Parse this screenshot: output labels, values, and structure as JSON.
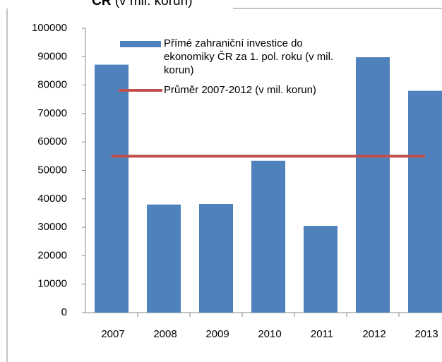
{
  "chart_data": {
    "type": "bar",
    "title_bold": "ČR",
    "title": "(v mil. korun)",
    "categories": [
      "2007",
      "2008",
      "2009",
      "2010",
      "2011",
      "2012",
      "2013"
    ],
    "series": [
      {
        "name": "Přímé zahraniční investice do ekonomiky ČR za 1. pol. roku (v mil. korun)",
        "type": "bar",
        "color": "#4f81bd",
        "values": [
          87200,
          38000,
          38200,
          53400,
          30500,
          89800,
          78000
        ]
      },
      {
        "name": "Průměr 2007-2012 (v mil. korun)",
        "type": "line",
        "color": "#c0504d",
        "values": [
          55000,
          55000,
          55000,
          55000,
          55000,
          55000,
          55000
        ]
      }
    ],
    "ylim": [
      0,
      100000
    ],
    "yticks": [
      0,
      10000,
      20000,
      30000,
      40000,
      50000,
      60000,
      70000,
      80000,
      90000,
      100000
    ],
    "grid": false
  }
}
